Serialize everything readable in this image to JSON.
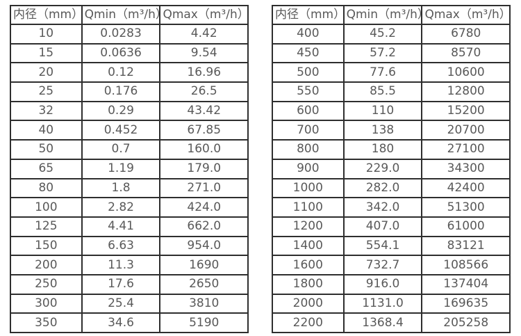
{
  "page": {
    "background": "#ffffff",
    "border_color": "#2e2e2e",
    "text_color": "#595959"
  },
  "tables": [
    {
      "name": "flow-rate-table-small-diameters",
      "headers": [
        "内径（mm）",
        "Qmin（m³/h）",
        "Qmax（m³/h）"
      ],
      "rows": [
        [
          "10",
          "0.0283",
          "4.42"
        ],
        [
          "15",
          "0.0636",
          "9.54"
        ],
        [
          "20",
          "0.12",
          "16.96"
        ],
        [
          "25",
          "0.176",
          "26.5"
        ],
        [
          "32",
          "0.29",
          "43.42"
        ],
        [
          "40",
          "0.452",
          "67.85"
        ],
        [
          "50",
          "0.7",
          "160.0"
        ],
        [
          "65",
          "1.19",
          "179.0"
        ],
        [
          "80",
          "1.8",
          "271.0"
        ],
        [
          "100",
          "2.82",
          "424.0"
        ],
        [
          "125",
          "4.41",
          "662.0"
        ],
        [
          "150",
          "6.63",
          "954.0"
        ],
        [
          "200",
          "11.3",
          "1690"
        ],
        [
          "250",
          "17.6",
          "2650"
        ],
        [
          "300",
          "25.4",
          "3810"
        ],
        [
          "350",
          "34.6",
          "5190"
        ]
      ]
    },
    {
      "name": "flow-rate-table-large-diameters",
      "headers": [
        "内径（mm）",
        "Qmin（m³/h）",
        "Qmax（m³/h）"
      ],
      "rows": [
        [
          "400",
          "45.2",
          "6780"
        ],
        [
          "450",
          "57.2",
          "8570"
        ],
        [
          "500",
          "77.6",
          "10600"
        ],
        [
          "550",
          "85.5",
          "12800"
        ],
        [
          "600",
          "110",
          "15200"
        ],
        [
          "700",
          "138",
          "20700"
        ],
        [
          "800",
          "180",
          "27100"
        ],
        [
          "900",
          "229.0",
          "34300"
        ],
        [
          "1000",
          "282.0",
          "42400"
        ],
        [
          "1100",
          "342.0",
          "51300"
        ],
        [
          "1200",
          "407.0",
          "61000"
        ],
        [
          "1400",
          "554.1",
          "83121"
        ],
        [
          "1600",
          "732.7",
          "108566"
        ],
        [
          "1800",
          "916.0",
          "137404"
        ],
        [
          "2000",
          "1131.0",
          "169635"
        ],
        [
          "2200",
          "1368.4",
          "205258"
        ]
      ]
    }
  ]
}
